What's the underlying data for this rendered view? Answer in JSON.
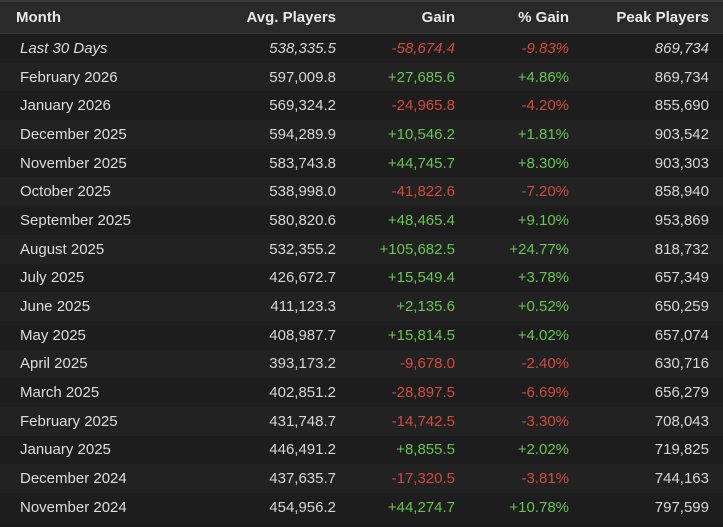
{
  "colors": {
    "positive": "#66c64e",
    "negative": "#d14b3a"
  },
  "header": {
    "month": "Month",
    "avg_players": "Avg. Players",
    "gain": "Gain",
    "pct_gain": "% Gain",
    "peak_players": "Peak Players"
  },
  "rows": [
    {
      "month": "Last 30 Days",
      "avg": "538,335.5",
      "gain": "-58,674.4",
      "pct": "-9.83%",
      "peak": "869,734",
      "trend": "neg",
      "italic": true
    },
    {
      "month": "February 2026",
      "avg": "597,009.8",
      "gain": "+27,685.6",
      "pct": "+4.86%",
      "peak": "869,734",
      "trend": "pos"
    },
    {
      "month": "January 2026",
      "avg": "569,324.2",
      "gain": "-24,965.8",
      "pct": "-4.20%",
      "peak": "855,690",
      "trend": "neg"
    },
    {
      "month": "December 2025",
      "avg": "594,289.9",
      "gain": "+10,546.2",
      "pct": "+1.81%",
      "peak": "903,542",
      "trend": "pos"
    },
    {
      "month": "November 2025",
      "avg": "583,743.8",
      "gain": "+44,745.7",
      "pct": "+8.30%",
      "peak": "903,303",
      "trend": "pos"
    },
    {
      "month": "October 2025",
      "avg": "538,998.0",
      "gain": "-41,822.6",
      "pct": "-7.20%",
      "peak": "858,940",
      "trend": "neg"
    },
    {
      "month": "September 2025",
      "avg": "580,820.6",
      "gain": "+48,465.4",
      "pct": "+9.10%",
      "peak": "953,869",
      "trend": "pos"
    },
    {
      "month": "August 2025",
      "avg": "532,355.2",
      "gain": "+105,682.5",
      "pct": "+24.77%",
      "peak": "818,732",
      "trend": "pos"
    },
    {
      "month": "July 2025",
      "avg": "426,672.7",
      "gain": "+15,549.4",
      "pct": "+3.78%",
      "peak": "657,349",
      "trend": "pos"
    },
    {
      "month": "June 2025",
      "avg": "411,123.3",
      "gain": "+2,135.6",
      "pct": "+0.52%",
      "peak": "650,259",
      "trend": "pos"
    },
    {
      "month": "May 2025",
      "avg": "408,987.7",
      "gain": "+15,814.5",
      "pct": "+4.02%",
      "peak": "657,074",
      "trend": "pos"
    },
    {
      "month": "April 2025",
      "avg": "393,173.2",
      "gain": "-9,678.0",
      "pct": "-2.40%",
      "peak": "630,716",
      "trend": "neg"
    },
    {
      "month": "March 2025",
      "avg": "402,851.2",
      "gain": "-28,897.5",
      "pct": "-6.69%",
      "peak": "656,279",
      "trend": "neg"
    },
    {
      "month": "February 2025",
      "avg": "431,748.7",
      "gain": "-14,742.5",
      "pct": "-3.30%",
      "peak": "708,043",
      "trend": "neg"
    },
    {
      "month": "January 2025",
      "avg": "446,491.2",
      "gain": "+8,855.5",
      "pct": "+2.02%",
      "peak": "719,825",
      "trend": "pos"
    },
    {
      "month": "December 2024",
      "avg": "437,635.7",
      "gain": "-17,320.5",
      "pct": "-3.81%",
      "peak": "744,163",
      "trend": "neg"
    },
    {
      "month": "November 2024",
      "avg": "454,956.2",
      "gain": "+44,274.7",
      "pct": "+10.78%",
      "peak": "797,599",
      "trend": "pos"
    }
  ]
}
